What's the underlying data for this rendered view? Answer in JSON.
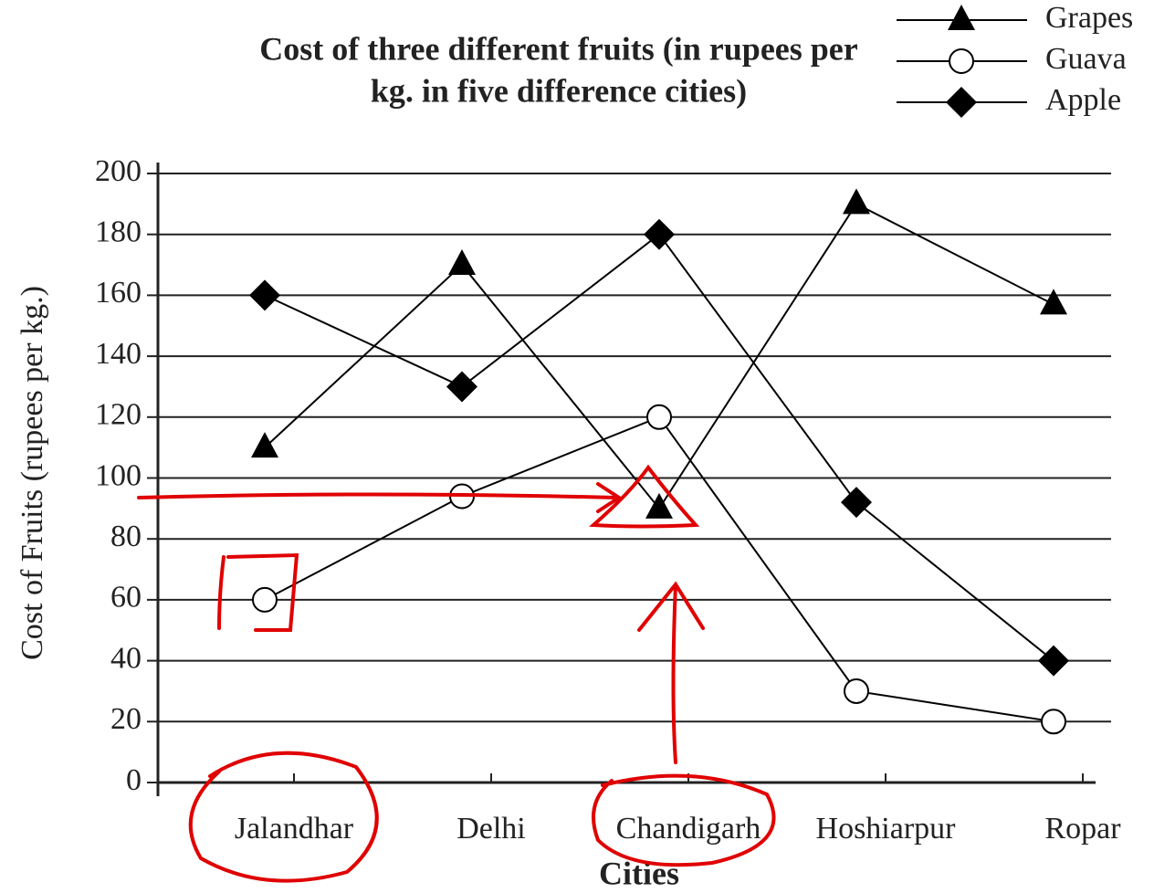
{
  "chart_data": {
    "type": "line",
    "title": [
      "Cost of three different fruits (in rupees per",
      "kg. in five difference cities)"
    ],
    "x_label": "Cities",
    "y_label": "Cost of Fruits (rupees per kg.)",
    "categories": [
      "Jalandhar",
      "Delhi",
      "Chandigarh",
      "Hoshiarpur",
      "Ropar"
    ],
    "series": [
      {
        "name": "Grapes",
        "color": "#000000",
        "marker": "triangle",
        "values": [
          110,
          170,
          90,
          190,
          157
        ]
      },
      {
        "name": "Guava",
        "color": "#000000",
        "marker": "circle",
        "values": [
          60,
          94,
          120,
          30,
          20
        ]
      },
      {
        "name": "Apple",
        "color": "#000000",
        "marker": "diamond",
        "values": [
          160,
          130,
          180,
          92,
          40
        ]
      }
    ],
    "ylim": [
      0,
      200
    ],
    "yticks": [
      0,
      20,
      40,
      60,
      80,
      100,
      120,
      140,
      160,
      180,
      200
    ],
    "grid": true,
    "legend": "top-right"
  }
}
